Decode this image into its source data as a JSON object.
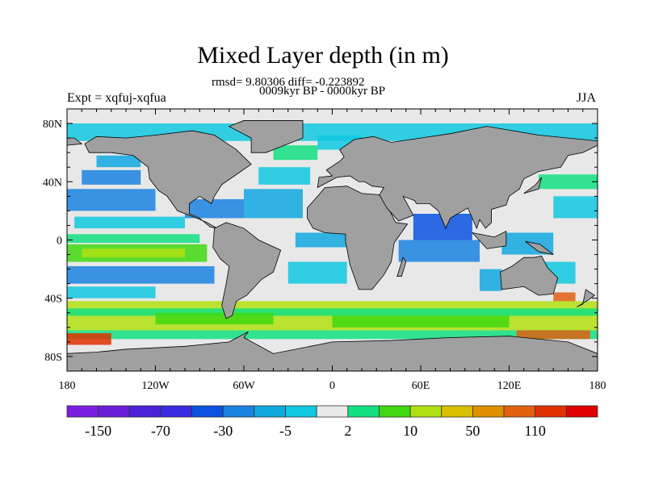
{
  "title": "Mixed Layer depth (in m)",
  "stats": "rmsd= 9.80306 diff= -0.223892",
  "subtitle": "0009kyr BP - 0000kyr BP",
  "left_string": "Expt = xqfuj-xqfua",
  "right_string": "JJA",
  "map": {
    "lon_labels": [
      "180",
      "120W",
      "60W",
      "0",
      "60E",
      "120E",
      "180"
    ],
    "lon_values": [
      -180,
      -120,
      -60,
      0,
      60,
      120,
      180
    ],
    "lat_labels": [
      "80N",
      "40N",
      "0",
      "40S",
      "80S"
    ],
    "lat_values": [
      80,
      40,
      0,
      -40,
      -80
    ],
    "land_color": "#a0a0a0",
    "missing_color": "#e8e8e8"
  },
  "colorbar": {
    "colors": [
      "#7a1ee0",
      "#6a1ed8",
      "#4c22d8",
      "#3a2ae0",
      "#0a52e0",
      "#1a82e0",
      "#12a8e0",
      "#10c8e0",
      "#e8e8e8",
      "#12e080",
      "#40d810",
      "#b0e010",
      "#d8c000",
      "#e09000",
      "#e06010",
      "#e03000",
      "#e00000"
    ],
    "labels": [
      "-150",
      "-70",
      "-30",
      "-5",
      "2",
      "10",
      "50",
      "110"
    ],
    "label_boundaries": [
      1,
      3,
      5,
      7,
      9,
      11,
      13,
      15
    ]
  }
}
